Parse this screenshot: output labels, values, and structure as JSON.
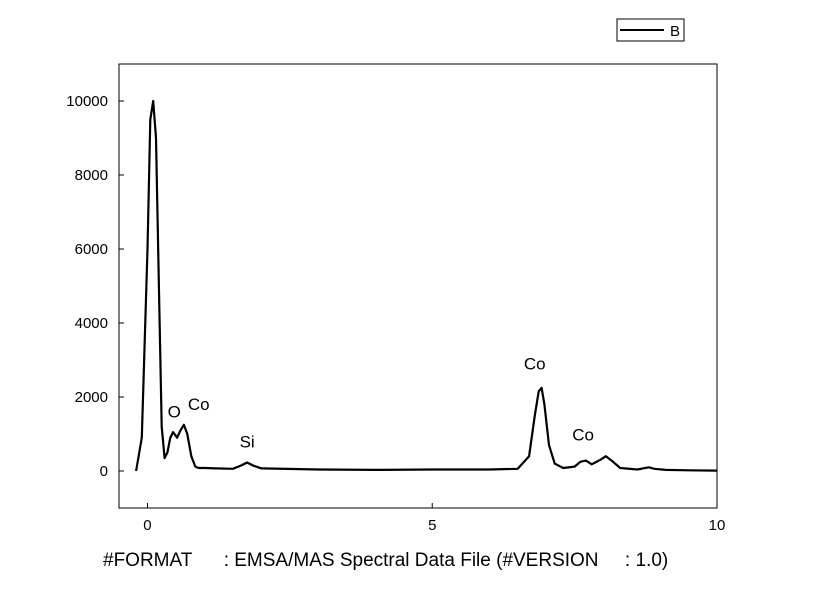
{
  "chart_data": {
    "type": "line",
    "title": "",
    "xlabel": "#FORMAT      : EMSA/MAS Spectral Data File (#VERSION     : 1.0)",
    "ylabel": "",
    "xlim": [
      -0.5,
      10
    ],
    "ylim": [
      -1000,
      11000
    ],
    "x_ticks": [
      0,
      5,
      10
    ],
    "x_tick_labels": [
      "0",
      "5",
      "10"
    ],
    "y_ticks": [
      0,
      2000,
      4000,
      6000,
      8000,
      10000
    ],
    "y_tick_labels": [
      "0",
      "2000",
      "4000",
      "6000",
      "8000",
      "10000"
    ],
    "grid": false,
    "legend": {
      "placement": "top-right",
      "entries": [
        "B"
      ]
    },
    "series": [
      {
        "name": "B",
        "color": "#000000",
        "x": [
          -0.2,
          -0.1,
          0.0,
          0.05,
          0.1,
          0.15,
          0.2,
          0.25,
          0.3,
          0.35,
          0.4,
          0.45,
          0.52,
          0.58,
          0.64,
          0.7,
          0.77,
          0.84,
          0.9,
          1.0,
          1.2,
          1.5,
          1.65,
          1.75,
          1.85,
          2.0,
          3.0,
          4.0,
          5.0,
          6.0,
          6.5,
          6.7,
          6.8,
          6.87,
          6.92,
          6.97,
          7.05,
          7.15,
          7.3,
          7.5,
          7.6,
          7.7,
          7.8,
          7.95,
          8.05,
          8.15,
          8.3,
          8.6,
          8.8,
          8.9,
          9.1,
          9.5,
          10.0
        ],
        "y": [
          0,
          900,
          6000,
          9500,
          10000,
          9000,
          5000,
          1200,
          350,
          500,
          900,
          1050,
          900,
          1100,
          1250,
          1000,
          400,
          120,
          80,
          80,
          70,
          60,
          150,
          230,
          150,
          70,
          40,
          30,
          40,
          40,
          60,
          400,
          1500,
          2150,
          2250,
          1800,
          700,
          200,
          80,
          120,
          250,
          280,
          180,
          300,
          400,
          280,
          80,
          40,
          100,
          60,
          30,
          20,
          10
        ]
      }
    ],
    "annotations": [
      {
        "text": "O",
        "x": 0.47,
        "y": 1450
      },
      {
        "text": "Co",
        "x": 0.9,
        "y": 1650
      },
      {
        "text": "Si",
        "x": 1.75,
        "y": 630
      },
      {
        "text": "Co",
        "x": 6.8,
        "y": 2750
      },
      {
        "text": "Co",
        "x": 7.65,
        "y": 830
      }
    ]
  }
}
